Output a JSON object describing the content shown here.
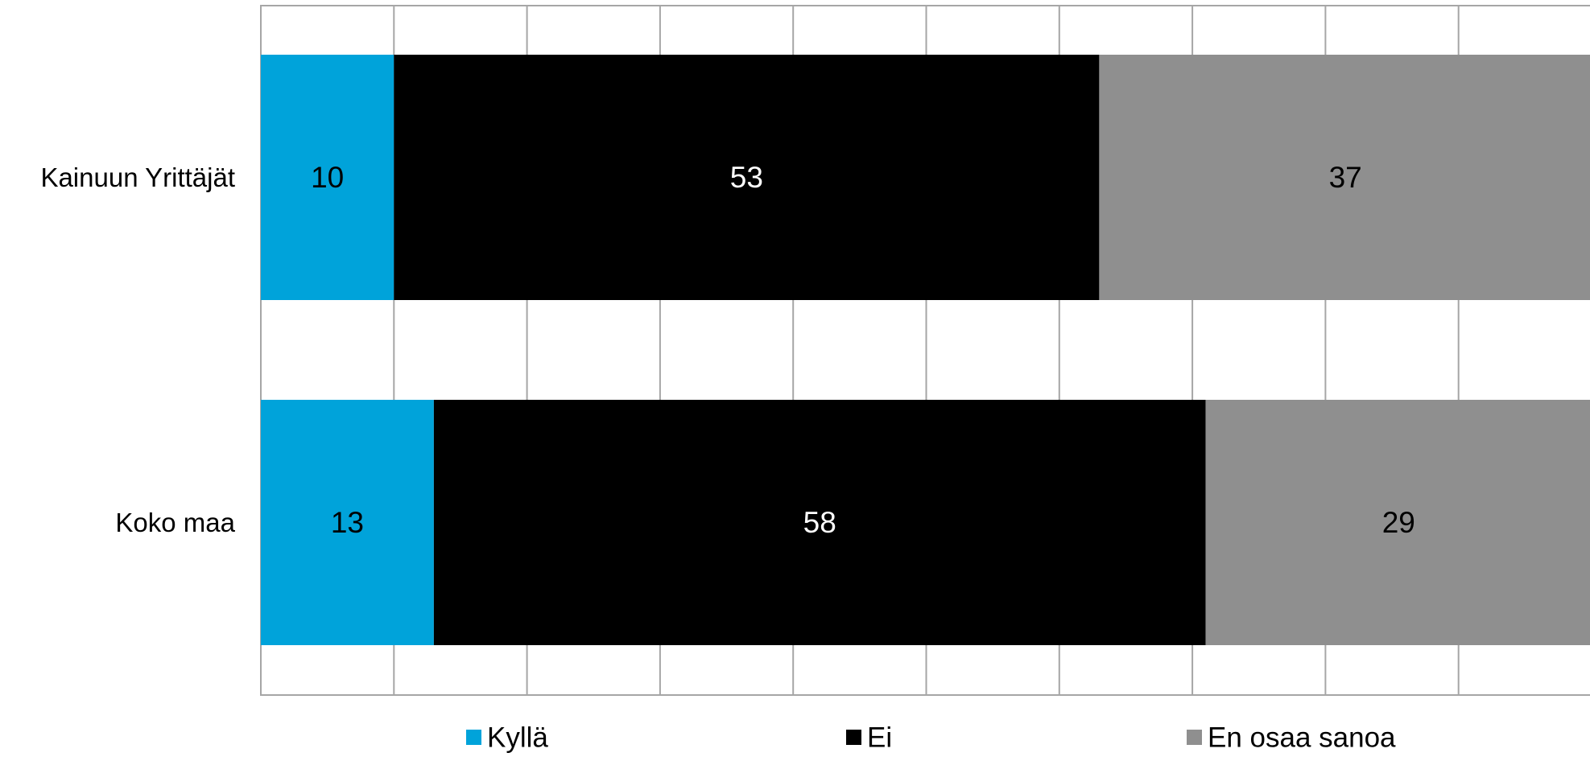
{
  "chart_data": {
    "type": "bar",
    "orientation": "horizontal",
    "stacked": true,
    "categories": [
      "Kainuun Yrittäjät",
      "Koko maa"
    ],
    "series": [
      {
        "name": "Kyllä",
        "values": [
          10,
          13
        ],
        "color": "#00a3da",
        "label_color": "#000000"
      },
      {
        "name": "Ei",
        "values": [
          53,
          58
        ],
        "color": "#000000",
        "label_color": "#ffffff"
      },
      {
        "name": "En osaa sanoa",
        "values": [
          37,
          29
        ],
        "color": "#8f8f8f",
        "label_color": "#000000"
      }
    ],
    "xlim": [
      0,
      100
    ],
    "grid": true,
    "legend": "bottom",
    "grid_color": "#a6a6a6"
  }
}
